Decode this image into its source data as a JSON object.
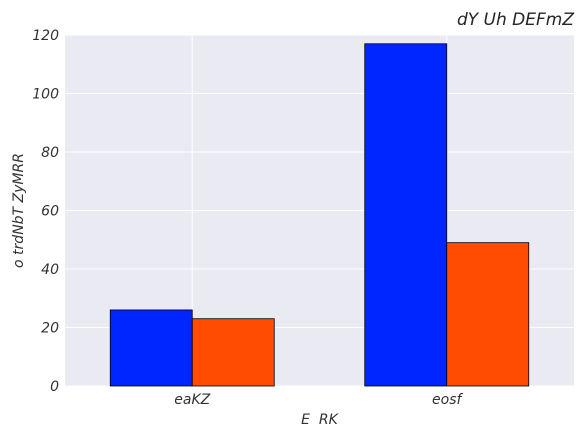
{
  "chart_data": {
    "type": "bar",
    "title": "dY Uh DEFmZ",
    "xlabel": "E  RK",
    "ylabel": "o trdNbT ZyMRR",
    "categories": [
      "eaKZ",
      "eosf"
    ],
    "series": [
      {
        "values": [
          26,
          117
        ],
        "color": "#0026ff"
      },
      {
        "values": [
          23,
          49
        ],
        "color": "#ff4c00"
      }
    ],
    "ylim": [
      0,
      120
    ],
    "yticks": [
      0,
      20,
      40,
      60,
      80,
      100,
      120
    ],
    "grid": true,
    "background": "#eaeaf2"
  }
}
